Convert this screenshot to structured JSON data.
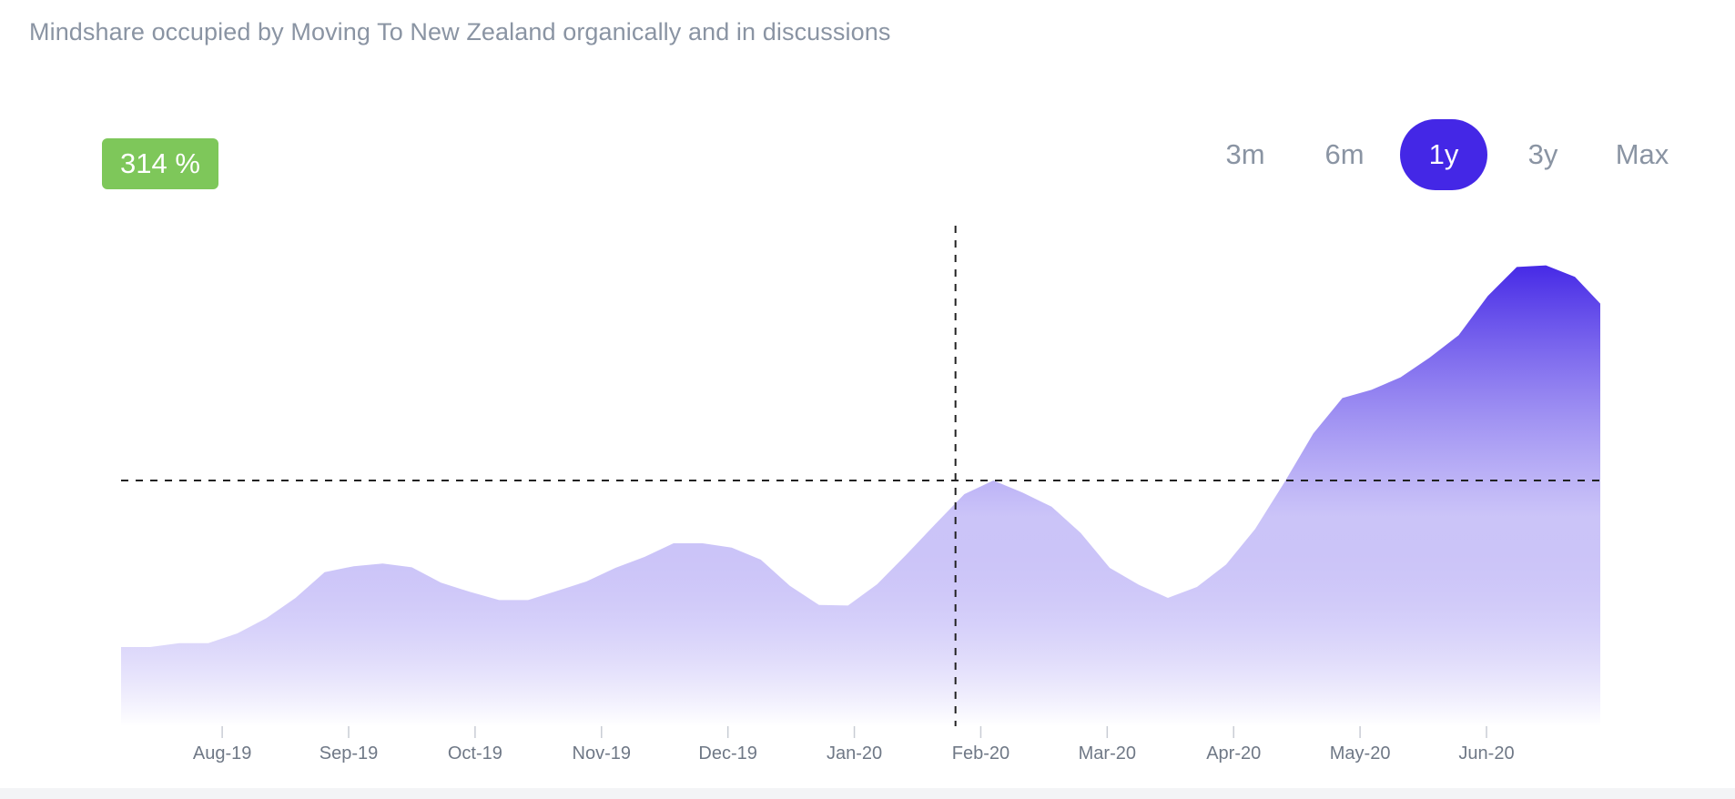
{
  "title": "Mindshare occupied by Moving To New Zealand organically and in discussions",
  "badge": {
    "value": "314 %",
    "color": "#7ec75a"
  },
  "ranges": {
    "options": [
      "3m",
      "6m",
      "1y",
      "3y",
      "Max"
    ],
    "selected": "1y",
    "accent": "#4427e6"
  },
  "chart_data": {
    "type": "area",
    "title": "",
    "xlabel": "",
    "ylabel": "",
    "x_tick_labels": [
      "Aug-19",
      "Sep-19",
      "Oct-19",
      "Nov-19",
      "Dec-19",
      "Jan-20",
      "Feb-20",
      "Mar-20",
      "Apr-20",
      "May-20",
      "Jun-20"
    ],
    "x_tick_months": [
      1,
      2,
      3,
      4,
      5,
      6,
      7,
      8,
      9,
      10,
      11
    ],
    "xlim": [
      0.2,
      11.9
    ],
    "ylim": [
      0,
      100
    ],
    "y_axis_visible": false,
    "grid": false,
    "fill_color_top": "#4427e6",
    "fill_color_bottom": "#ffffff",
    "crosshair": {
      "x": 6.8,
      "y": 45
    },
    "series": [
      {
        "x": [
          0.2,
          0.43,
          0.66,
          0.89,
          1.12,
          1.35,
          1.58,
          1.81,
          2.04,
          2.27,
          2.5,
          2.73,
          2.96,
          3.19,
          3.42,
          3.65,
          3.88,
          4.11,
          4.34,
          4.57,
          4.8,
          5.03,
          5.26,
          5.49,
          5.72,
          5.95,
          6.18,
          6.41,
          6.64,
          6.87,
          7.1,
          7.33,
          7.56,
          7.79,
          8.02,
          8.25,
          8.48,
          8.71,
          8.94,
          9.17,
          9.4,
          9.63,
          9.86,
          10.09,
          10.32,
          10.55,
          10.78,
          11.01,
          11.24,
          11.47,
          11.7,
          11.9
        ],
        "values": [
          14.5,
          14.5,
          15.2,
          15.2,
          17,
          19.8,
          23.5,
          28.2,
          29.3,
          29.8,
          29.1,
          26.3,
          24.6,
          23.1,
          23.1,
          24.8,
          26.5,
          29,
          31,
          33.5,
          33.5,
          32.7,
          30.5,
          25.7,
          22.2,
          22.1,
          26,
          31.4,
          37,
          42.5,
          45,
          42.8,
          40.2,
          35.4,
          29,
          25.9,
          23.5,
          25.5,
          29.6,
          36.1,
          44.6,
          53.6,
          60.1,
          61.6,
          63.9,
          67.5,
          71.6,
          78.8,
          84.1,
          84.4,
          82.3,
          77.4
        ]
      }
    ]
  }
}
